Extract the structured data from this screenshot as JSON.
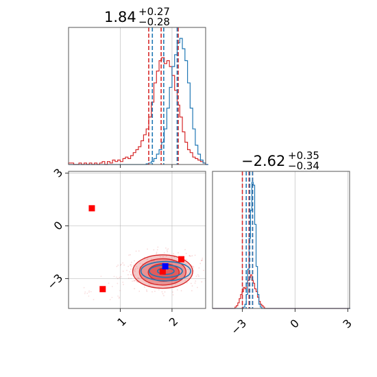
{
  "chart_data": {
    "type": "corner",
    "colors": {
      "blue": "#1f77b4",
      "red": "#d62728",
      "marker_blue": "#0000ff",
      "marker_red": "#ff0000"
    },
    "parameters": [
      {
        "title": {
          "median": "1.84",
          "plus": "+0.27",
          "minus": "−0.28"
        },
        "range": [
          0.0,
          2.65
        ],
        "ticks": [
          1,
          2
        ],
        "tick_labels": [
          "1",
          "2"
        ],
        "quantiles": {
          "blue": [
            1.62,
            1.84,
            2.1
          ],
          "red": [
            1.55,
            1.79,
            2.12
          ]
        },
        "hist_bins": {
          "start": 0.0,
          "width": 0.05
        },
        "hist_blue": [
          0,
          0,
          0,
          0,
          0,
          0,
          0,
          0,
          0,
          0,
          0,
          0,
          0,
          0,
          0,
          0,
          0,
          0,
          0,
          0,
          0,
          0,
          0,
          0,
          0,
          0,
          0,
          0,
          0,
          0,
          0.5,
          1,
          2,
          4,
          7,
          10,
          15,
          24,
          38,
          52,
          66,
          74,
          82,
          85,
          78,
          70,
          55,
          38,
          24,
          13,
          7,
          3,
          1,
          0
        ],
        "hist_red": [
          1,
          1,
          0,
          0,
          1,
          0,
          1,
          0,
          1,
          0,
          1,
          0,
          1,
          2,
          0,
          2,
          1,
          3,
          2,
          3,
          2,
          4,
          5,
          4,
          6,
          8,
          10,
          12,
          16,
          20,
          24,
          32,
          42,
          55,
          63,
          70,
          72,
          68,
          70,
          66,
          60,
          50,
          40,
          32,
          22,
          15,
          10,
          8,
          5,
          4,
          3,
          2,
          1,
          0
        ]
      },
      {
        "title": {
          "median": "−2.62",
          "plus": "+0.35",
          "minus": "−0.34"
        },
        "range": [
          -4.7,
          3.1
        ],
        "ticks": [
          -3,
          0,
          3
        ],
        "tick_labels": [
          "−3",
          "0",
          "3"
        ],
        "quantiles": {
          "blue": [
            -2.78,
            -2.58,
            -2.42
          ],
          "red": [
            -3.0,
            -2.62,
            -2.42
          ]
        },
        "hist_bins": {
          "start": -4.7,
          "width": 0.08
        },
        "hist_blue": [
          0,
          0,
          0,
          0,
          0,
          0,
          0,
          0,
          0,
          0,
          0,
          0,
          0,
          0,
          0,
          0,
          0,
          0,
          0,
          0,
          0,
          0,
          1,
          3,
          10,
          28,
          50,
          70,
          90,
          88,
          60,
          30,
          10,
          3,
          1,
          0,
          0,
          0,
          0,
          0,
          0,
          0,
          0,
          0,
          0,
          0,
          0,
          0,
          0,
          0,
          0,
          0,
          0,
          0,
          0,
          0,
          0,
          0,
          0,
          0,
          0,
          0,
          0,
          0,
          0,
          0,
          0,
          0,
          0,
          0,
          0,
          0,
          0,
          0,
          0,
          0,
          0,
          0,
          0,
          0,
          0,
          0,
          0,
          0,
          0,
          0,
          0,
          0,
          0,
          0,
          0,
          0,
          0,
          0,
          0,
          0,
          0,
          0
        ],
        "hist_red": [
          0,
          0,
          0,
          0,
          0,
          0,
          0,
          0,
          0,
          0,
          0,
          0,
          0,
          0,
          0,
          0,
          1,
          2,
          4,
          7,
          10,
          12,
          15,
          14,
          18,
          20,
          22,
          24,
          20,
          18,
          14,
          12,
          8,
          5,
          3,
          2,
          1,
          0,
          0,
          0,
          0,
          0,
          0,
          0,
          0,
          0,
          0,
          0,
          0,
          0,
          0,
          0,
          0,
          0,
          0,
          0,
          0,
          0,
          0,
          0,
          0,
          0,
          0,
          0,
          0,
          0,
          0,
          0,
          0,
          0,
          0,
          0,
          0,
          0,
          0,
          0,
          0,
          0,
          0,
          0,
          0,
          0,
          0,
          0,
          0,
          0,
          0,
          0,
          0,
          0,
          0,
          0,
          0,
          0,
          0,
          0,
          0,
          0
        ]
      }
    ],
    "joint": {
      "x_range": [
        0.0,
        2.65
      ],
      "y_range": [
        -4.7,
        3.1
      ],
      "x_ticks": [
        1,
        2
      ],
      "x_tick_labels": [
        "1",
        "2"
      ],
      "y_ticks": [
        3,
        0,
        -3
      ],
      "y_tick_labels": [
        "3",
        "0",
        "−3"
      ],
      "red_contours": [
        {
          "cx": 1.82,
          "cy": -2.6,
          "rx": 0.58,
          "ry": 0.95,
          "fill_opacity": 0.25
        },
        {
          "cx": 1.82,
          "cy": -2.62,
          "rx": 0.45,
          "ry": 0.75,
          "fill_opacity": 0.35
        },
        {
          "cx": 1.84,
          "cy": -2.65,
          "rx": 0.3,
          "ry": 0.5,
          "fill_opacity": 0.5
        }
      ],
      "blue_contours": [
        {
          "cx": 1.88,
          "cy": -2.58,
          "rx": 0.48,
          "ry": 0.55
        },
        {
          "cx": 1.88,
          "cy": -2.58,
          "rx": 0.32,
          "ry": 0.35
        },
        {
          "cx": 1.88,
          "cy": -2.58,
          "rx": 0.16,
          "ry": 0.18
        }
      ],
      "red_markers": [
        {
          "x": 0.45,
          "y": 1.0
        },
        {
          "x": 0.66,
          "y": -3.6
        },
        {
          "x": 1.82,
          "y": -2.6
        },
        {
          "x": 2.18,
          "y": -1.9
        }
      ],
      "blue_markers": [
        {
          "x": 1.87,
          "y": -2.3
        }
      ]
    }
  }
}
